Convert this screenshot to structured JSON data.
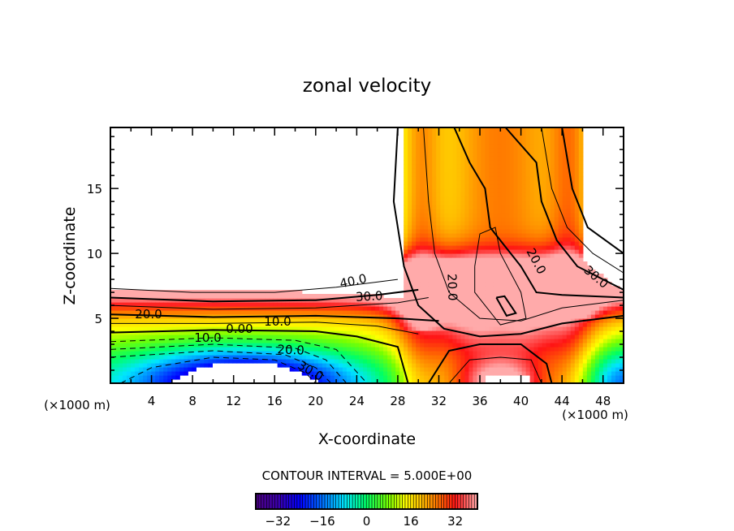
{
  "chart_data": {
    "type": "heatmap",
    "subtype": "filled-contour",
    "title": "zonal velocity",
    "xlabel": "X-coordinate",
    "ylabel": "Z-coordinate",
    "x_unit_label": "(×1000 m)",
    "x_unit_label_right": "(×1000 m)",
    "xlim": [
      0,
      50
    ],
    "ylim": [
      0,
      19.7
    ],
    "xticks": [
      4,
      8,
      12,
      16,
      20,
      24,
      28,
      32,
      36,
      40,
      44,
      48
    ],
    "xtick_labels": [
      "4",
      "8",
      "12",
      "16",
      "20",
      "24",
      "28",
      "32",
      "36",
      "40",
      "44",
      "48"
    ],
    "yticks": [
      5,
      10,
      15
    ],
    "ytick_labels": [
      "5",
      "10",
      "15"
    ],
    "contour_interval_text": "CONTOUR INTERVAL = 5.000E+00",
    "contour_labels": [
      "40.0",
      "30.0",
      "20.0",
      "10.0",
      "0.00",
      "10.0",
      "20.0",
      "30.0",
      "20.0",
      "20.0",
      "30.0"
    ],
    "colorbar": {
      "range": [
        -40,
        40
      ],
      "ticks": [
        -32,
        -16,
        0,
        16,
        32
      ],
      "tick_labels": [
        "−32",
        "−16",
        "0",
        "16",
        "32"
      ]
    },
    "colors": {
      "min": "#4b0082",
      "low": "#0000ff",
      "mid_low": "#00ffff",
      "zero": "#00ff66",
      "mid_high": "#ffff00",
      "high": "#ff0000",
      "max": "#ffa0a0"
    }
  }
}
